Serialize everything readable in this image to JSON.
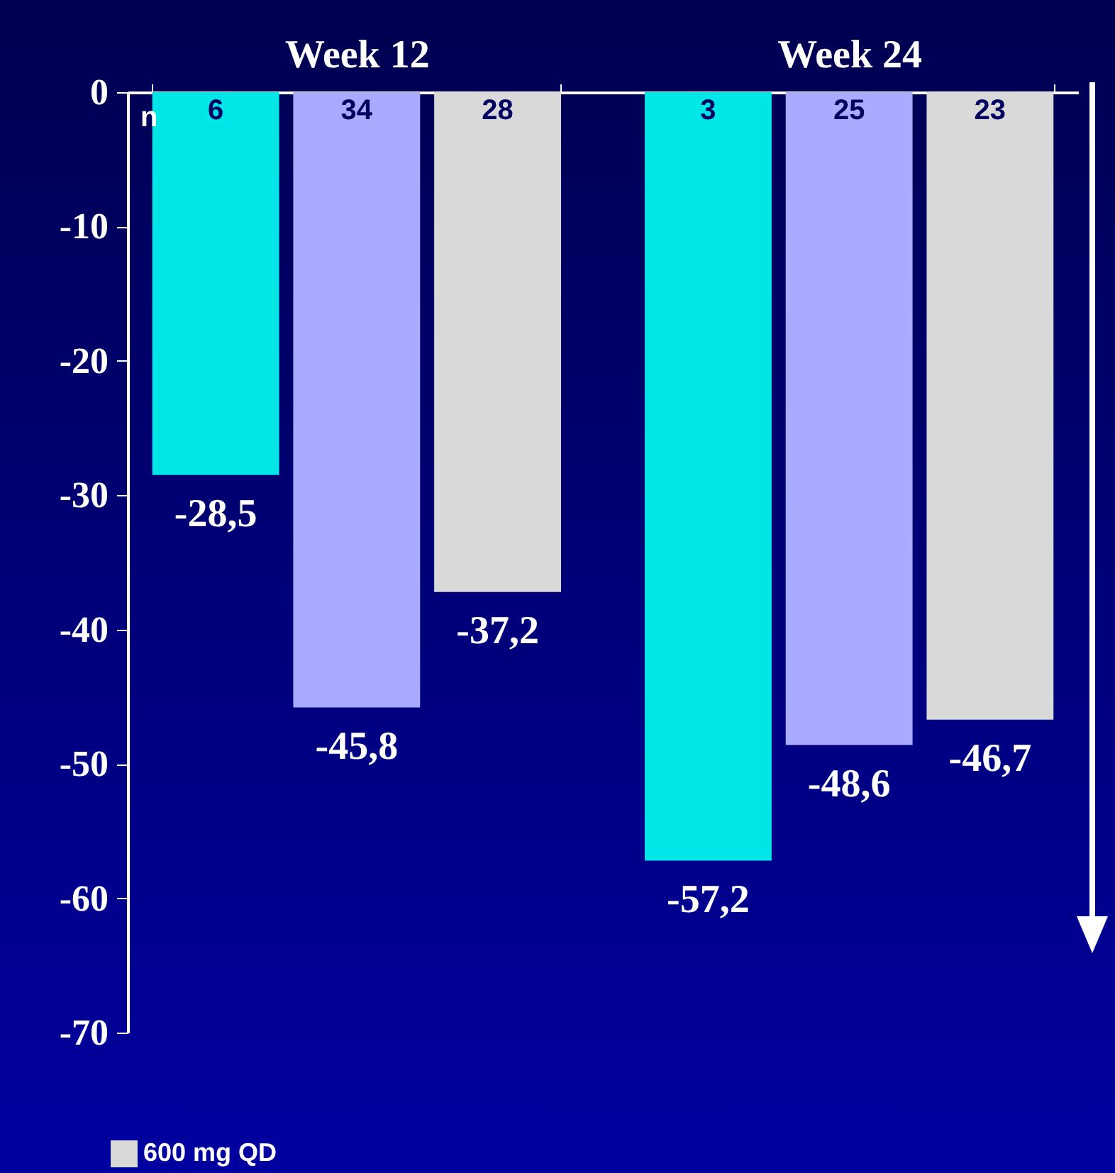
{
  "chart_data": {
    "type": "bar",
    "categories": [
      "Week 12",
      "Week 24"
    ],
    "series": [
      {
        "color": "#00e5e5",
        "values": [
          -28.5,
          -57.2
        ],
        "value_labels": [
          "-28,5",
          "-57,2"
        ]
      },
      {
        "color": "#aaaaff",
        "values": [
          -45.8,
          -48.6
        ],
        "value_labels": [
          "-45,8",
          "-48,6"
        ]
      },
      {
        "name": "600 mg QD",
        "color": "#d9d9d9",
        "values": [
          -37.2,
          -46.7
        ],
        "value_labels": [
          "-37,2",
          "-46,7"
        ]
      }
    ],
    "ylim": [
      -70,
      0
    ],
    "yticks": [
      0,
      -10,
      -20,
      -30,
      -40,
      -50,
      -60,
      -70
    ],
    "grid": false,
    "legend": "bottom",
    "annotations": [
      "n",
      "6",
      "34",
      "28",
      "3",
      "25",
      "23"
    ]
  }
}
